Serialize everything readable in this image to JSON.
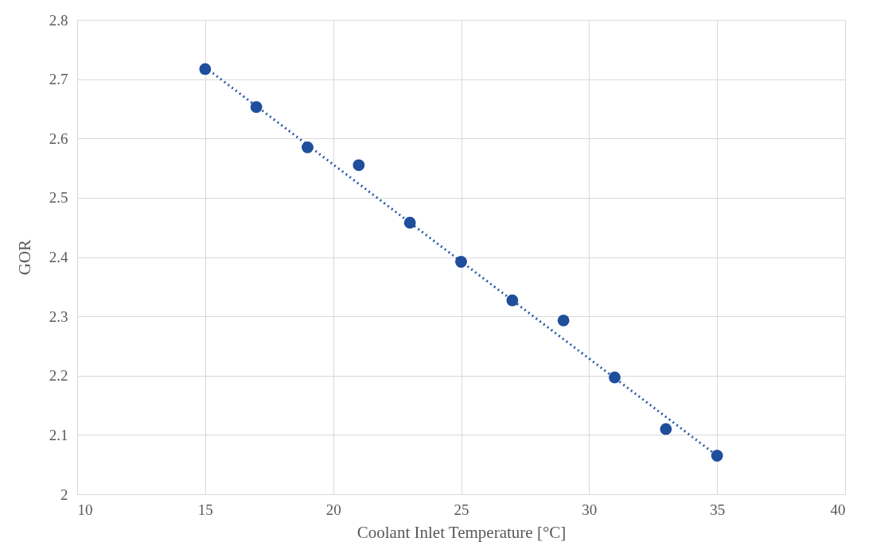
{
  "chart_data": {
    "type": "scatter",
    "xlabel": "Coolant Inlet Temperature [°C]",
    "ylabel": "GOR",
    "xlim": [
      10,
      40
    ],
    "ylim": [
      2,
      2.8
    ],
    "xticks": [
      10,
      15,
      20,
      25,
      30,
      35,
      40
    ],
    "yticks": [
      2,
      2.1,
      2.2,
      2.3,
      2.4,
      2.5,
      2.6,
      2.7,
      2.8
    ],
    "grid": true,
    "series": [
      {
        "color": "#1f4e9c",
        "marker": "circle",
        "x": [
          15,
          17,
          19,
          21,
          23,
          25,
          27,
          29,
          31,
          33,
          35
        ],
        "values": [
          2.717,
          2.653,
          2.585,
          2.555,
          2.458,
          2.392,
          2.327,
          2.293,
          2.197,
          2.11,
          2.065
        ]
      },
      {
        "type": "line",
        "color": "#2a5aa8",
        "line_style": "dotted",
        "x": [
          15,
          35
        ],
        "values": [
          2.72,
          2.065
        ]
      }
    ]
  }
}
